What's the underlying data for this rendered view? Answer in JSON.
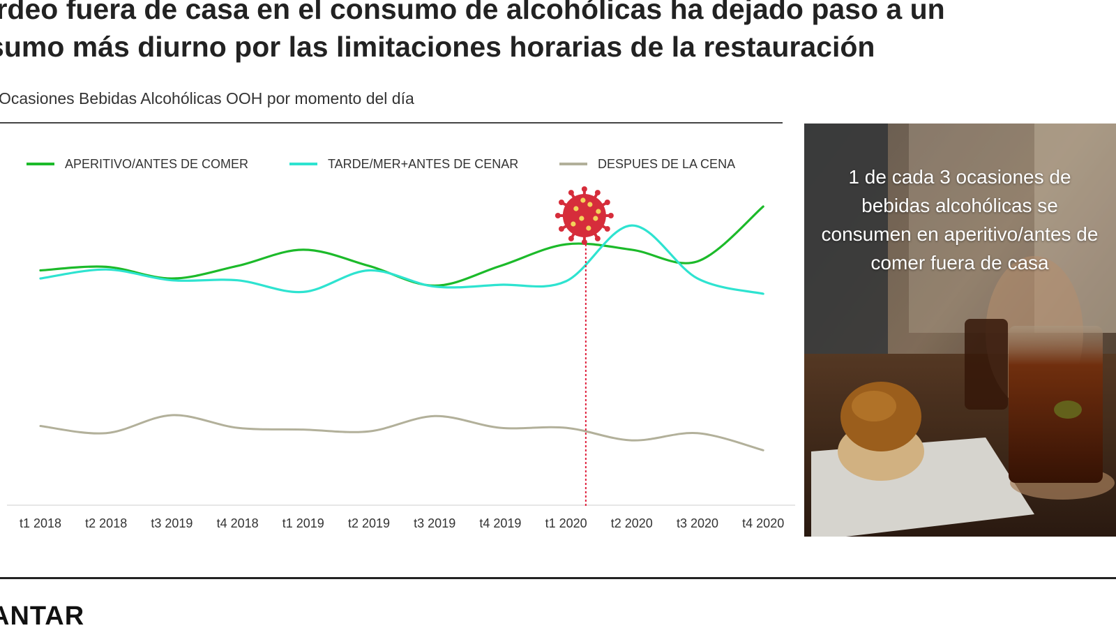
{
  "headline": {
    "line1": "tardeo fuera de casa en el consumo de alcohólicas ha dejado paso a un",
    "line2": "nsumo más diurno por las limitaciones horarias de la restauración"
  },
  "subtitle": "Ocasiones Bebidas Alcohólicas OOH por momento del día",
  "callout": "1 de cada 3 ocasiones de bebidas alcohólicas se consumen en aperitivo/antes de comer fuera de casa",
  "brand": "ANTAR",
  "colors": {
    "aperitivo": "#1cba2a",
    "tarde": "#2ee3d0",
    "despues": "#b2b09a",
    "marker": "#e0203c",
    "virus": "#d62d3b"
  },
  "chart_data": {
    "type": "line",
    "categories": [
      "t1 2018",
      "t2 2018",
      "t3 2019",
      "t4 2018",
      "t1 2019",
      "t2 2019",
      "t3 2019",
      "t4 2019",
      "t1 2020",
      "t2 2020",
      "t3 2020",
      "t4 2020"
    ],
    "series": [
      {
        "name": "APERITIVO/ANTES DE COMER",
        "values": [
          28.9,
          29.3,
          28.0,
          29.4,
          31.2,
          29.4,
          27.2,
          29.4,
          31.8,
          31.2,
          29.9,
          36.0
        ]
      },
      {
        "name": "TARDE/MER+ANTES DE CENAR",
        "values": [
          28.0,
          29.0,
          27.8,
          27.8,
          26.5,
          28.9,
          27.1,
          27.3,
          27.7,
          33.9,
          28.0,
          26.3
        ]
      },
      {
        "name": "DESPUES DE LA CENA",
        "values": [
          11.6,
          10.8,
          12.8,
          11.4,
          11.2,
          11.0,
          12.7,
          11.4,
          11.4,
          10.0,
          10.8,
          8.9
        ]
      }
    ],
    "ylim": [
      0,
      45
    ],
    "yaxis_visible": false,
    "grid": false,
    "legend": "top",
    "annotation": {
      "type": "vertical-dotted-line",
      "at_category": "t1 2020",
      "offset": 0.3,
      "icon": "virus-icon"
    }
  }
}
